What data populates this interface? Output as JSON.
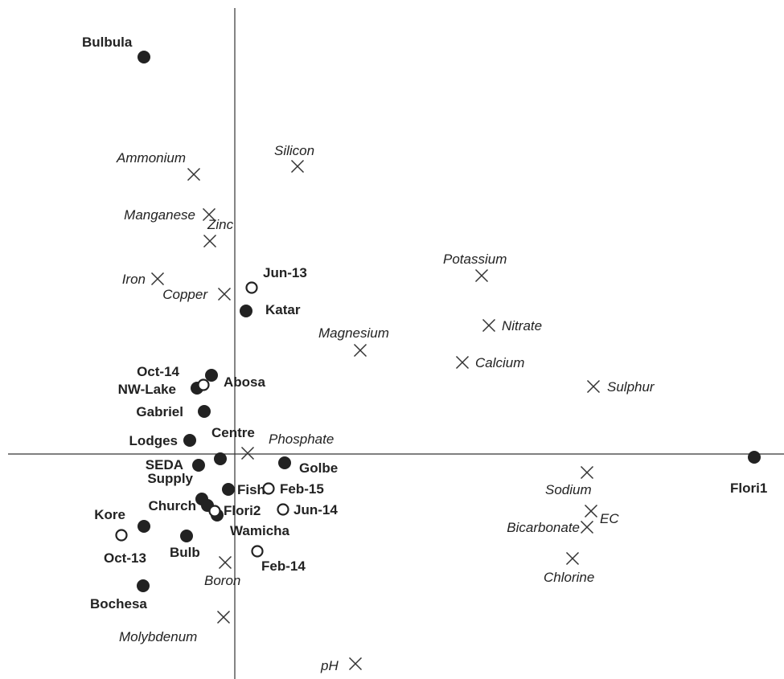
{
  "chart_data": {
    "type": "scatter",
    "title": "",
    "xlabel": "",
    "ylabel": "",
    "xlim": [
      -2.9,
      6.9
    ],
    "ylim": [
      -2.73,
      5.58
    ],
    "grid": false,
    "legend": "none",
    "colors": {
      "filled": "#222222",
      "hollow": "#ffffff",
      "cross": "#333333",
      "axis": "#333333"
    },
    "sites_filled": [
      {
        "name": "Bulbula",
        "x": -1.13,
        "y": 4.94
      },
      {
        "name": "Katar",
        "x": 0.14,
        "y": 1.78
      },
      {
        "name": "NW-Lake",
        "x": -0.47,
        "y": 0.82
      },
      {
        "name": "Abosa",
        "x": -0.29,
        "y": 0.98
      },
      {
        "name": "Gabriel",
        "x": -0.38,
        "y": 0.53
      },
      {
        "name": "Lodges",
        "x": -0.56,
        "y": 0.17
      },
      {
        "name": "SEDA",
        "x": -0.45,
        "y": -0.14
      },
      {
        "name": "Centre",
        "x": -0.18,
        "y": -0.06
      },
      {
        "name": "Golbe",
        "x": 0.62,
        "y": -0.11
      },
      {
        "name": "Fish",
        "x": -0.08,
        "y": -0.44
      },
      {
        "name": "Supply",
        "x": -0.41,
        "y": -0.56
      },
      {
        "name": "Church",
        "x": -0.34,
        "y": -0.64
      },
      {
        "name": "Flori2",
        "x": -0.22,
        "y": -0.76
      },
      {
        "name": "Kore",
        "x": -1.13,
        "y": -0.9
      },
      {
        "name": "Bulb",
        "x": -0.6,
        "y": -1.02
      },
      {
        "name": "Bochesa",
        "x": -1.14,
        "y": -1.64
      },
      {
        "name": "Flori1",
        "x": 6.46,
        "y": -0.04
      }
    ],
    "sites_hollow": [
      {
        "name": "Jun-13",
        "x": 0.21,
        "y": 2.07
      },
      {
        "name": "Oct-14",
        "x": -0.39,
        "y": 0.86
      },
      {
        "name": "Feb-15",
        "x": 0.42,
        "y": -0.43
      },
      {
        "name": "Jun-14",
        "x": 0.6,
        "y": -0.69
      },
      {
        "name": "Wamicha",
        "x": -0.25,
        "y": -0.71
      },
      {
        "name": "Oct-13",
        "x": -1.41,
        "y": -1.01
      },
      {
        "name": "Feb-14",
        "x": 0.28,
        "y": -1.21
      }
    ],
    "variables": [
      {
        "name": "Ammonium",
        "x": -0.51,
        "y": 3.48
      },
      {
        "name": "Silicon",
        "x": 0.78,
        "y": 3.58
      },
      {
        "name": "Manganese",
        "x": -0.32,
        "y": 2.98
      },
      {
        "name": "Zinc",
        "x": -0.31,
        "y": 2.65
      },
      {
        "name": "Iron",
        "x": -0.96,
        "y": 2.18
      },
      {
        "name": "Copper",
        "x": -0.13,
        "y": 1.99
      },
      {
        "name": "Potassium",
        "x": 3.07,
        "y": 2.22
      },
      {
        "name": "Nitrate",
        "x": 3.16,
        "y": 1.6
      },
      {
        "name": "Magnesium",
        "x": 1.56,
        "y": 1.29
      },
      {
        "name": "Calcium",
        "x": 2.83,
        "y": 1.14
      },
      {
        "name": "Sulphur",
        "x": 4.46,
        "y": 0.84
      },
      {
        "name": "Phosphate",
        "x": 0.16,
        "y": 0.01
      },
      {
        "name": "Sodium",
        "x": 4.38,
        "y": -0.23
      },
      {
        "name": "EC",
        "x": 4.43,
        "y": -0.71
      },
      {
        "name": "Bicarbonate",
        "x": 4.38,
        "y": -0.91
      },
      {
        "name": "Chlorine",
        "x": 4.2,
        "y": -1.3
      },
      {
        "name": "Boron",
        "x": -0.12,
        "y": -1.35
      },
      {
        "name": "Molybdenum",
        "x": -0.14,
        "y": -2.03
      },
      {
        "name": "pH",
        "x": 1.5,
        "y": -2.61
      }
    ]
  }
}
